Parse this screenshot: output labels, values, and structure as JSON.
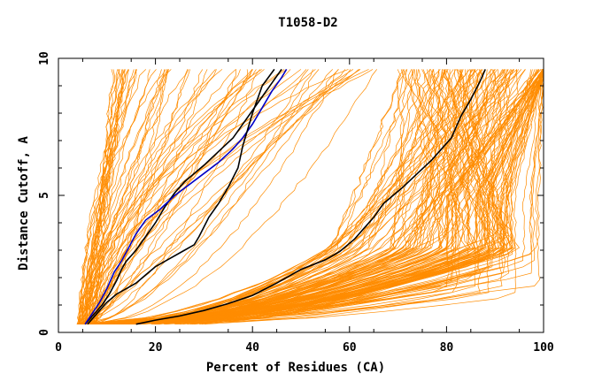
{
  "chart_data": {
    "type": "line",
    "title": "T1058-D2",
    "xlabel": "Percent of Residues (CA)",
    "ylabel": "Distance Cutoff, A",
    "xlim": [
      0,
      100
    ],
    "ylim": [
      0,
      10
    ],
    "xticks": [
      "0",
      "20",
      "40",
      "60",
      "80",
      "100"
    ],
    "yticks": [
      "0",
      "5",
      "10"
    ],
    "grid": false,
    "colors": {
      "orange": "#ff8c00",
      "black": "#000000",
      "blue": "#0000c8",
      "axis": "#000000"
    },
    "highlighted_series": [
      {
        "color": "black",
        "x": [
          5.5,
          7,
          9,
          10.5,
          12,
          13,
          14,
          16,
          18,
          20,
          22,
          24,
          26,
          28,
          30,
          33,
          36,
          38,
          40,
          42,
          44,
          46
        ],
        "y": [
          0.3,
          0.6,
          1.0,
          1.4,
          1.9,
          2.3,
          2.6,
          3.0,
          3.5,
          4.0,
          4.6,
          5.1,
          5.5,
          5.8,
          6.1,
          6.6,
          7.1,
          7.6,
          8.1,
          8.6,
          9.1,
          9.6
        ]
      },
      {
        "color": "blue",
        "x": [
          5.5,
          7,
          8.5,
          10,
          11.5,
          13,
          14.5,
          16,
          18,
          21,
          24,
          27,
          30,
          33,
          36,
          38,
          40,
          42,
          44,
          46,
          47
        ],
        "y": [
          0.3,
          0.7,
          1.1,
          1.6,
          2.2,
          2.6,
          3.1,
          3.6,
          4.1,
          4.5,
          5.0,
          5.4,
          5.8,
          6.2,
          6.7,
          7.1,
          7.6,
          8.2,
          8.8,
          9.3,
          9.6
        ]
      },
      {
        "color": "black",
        "x": [
          6,
          8,
          10,
          12,
          14,
          16,
          18,
          20,
          23,
          26,
          28,
          29,
          31,
          33,
          35,
          37,
          38,
          39,
          40,
          41,
          42,
          44.5
        ],
        "y": [
          0.3,
          0.7,
          1.1,
          1.4,
          1.6,
          1.8,
          2.1,
          2.4,
          2.7,
          3.0,
          3.2,
          3.5,
          4.2,
          4.7,
          5.3,
          6.0,
          6.8,
          7.4,
          8.0,
          8.5,
          9.0,
          9.6
        ]
      },
      {
        "color": "black",
        "x": [
          16,
          20,
          25,
          30,
          35,
          40,
          45,
          50,
          55,
          58,
          61,
          63,
          65,
          67,
          69,
          71,
          74,
          77,
          79,
          81,
          83,
          85,
          87,
          88
        ],
        "y": [
          0.3,
          0.45,
          0.6,
          0.8,
          1.05,
          1.35,
          1.8,
          2.3,
          2.65,
          2.95,
          3.4,
          3.8,
          4.2,
          4.7,
          5.0,
          5.3,
          5.8,
          6.3,
          6.7,
          7.1,
          7.9,
          8.5,
          9.2,
          9.6
        ]
      }
    ]
  }
}
